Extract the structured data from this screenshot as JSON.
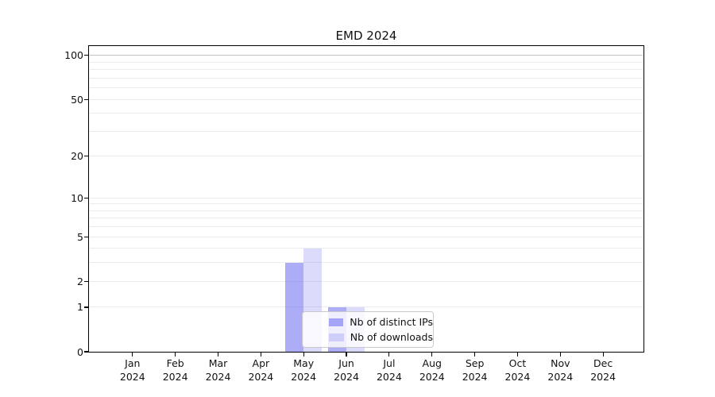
{
  "figure": {
    "background": "#ffffff"
  },
  "chart_data": {
    "type": "bar",
    "title": "EMD 2024",
    "categories": [
      {
        "month": "Jan",
        "year": "2024"
      },
      {
        "month": "Feb",
        "year": "2024"
      },
      {
        "month": "Mar",
        "year": "2024"
      },
      {
        "month": "Apr",
        "year": "2024"
      },
      {
        "month": "May",
        "year": "2024"
      },
      {
        "month": "Jun",
        "year": "2024"
      },
      {
        "month": "Jul",
        "year": "2024"
      },
      {
        "month": "Aug",
        "year": "2024"
      },
      {
        "month": "Sep",
        "year": "2024"
      },
      {
        "month": "Oct",
        "year": "2024"
      },
      {
        "month": "Nov",
        "year": "2024"
      },
      {
        "month": "Dec",
        "year": "2024"
      }
    ],
    "series": [
      {
        "name": "Nb of distinct IPs",
        "color": "rgba(106,103,240,0.55)",
        "values": [
          0,
          0,
          0,
          0,
          3,
          1,
          0,
          0,
          0,
          0,
          0,
          0
        ]
      },
      {
        "name": "Nb of downloads",
        "color": "rgba(106,103,240,0.235)",
        "values": [
          0,
          0,
          0,
          0,
          4,
          1,
          0,
          0,
          0,
          0,
          0,
          0
        ]
      }
    ],
    "y_axis": {
      "scale": "log1p",
      "ticks": [
        0,
        1,
        2,
        5,
        10,
        20,
        50,
        100
      ],
      "minor_gridlines": [
        3,
        4,
        6,
        7,
        8,
        9,
        30,
        40,
        60,
        70,
        80,
        90
      ],
      "ylim": [
        0,
        116
      ]
    },
    "x_axis": {
      "tick_count": 12
    },
    "grid": {
      "color": "#ececec",
      "line_100_color": "#c2c2c2",
      "on": true
    },
    "legend": {
      "position": "inside lower-center",
      "entries": [
        "Nb of distinct IPs",
        "Nb of downloads"
      ]
    },
    "colors": {
      "spine": "#000000",
      "background": "#ffffff"
    }
  }
}
